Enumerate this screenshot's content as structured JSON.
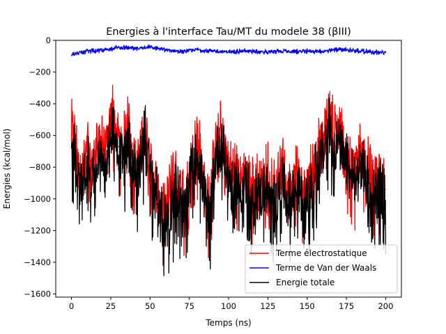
{
  "chart_data": {
    "type": "line",
    "title": "Energies à l'interface Tau/MT du modele 38 (βIII)",
    "xlabel": "Temps (ns)",
    "ylabel": "Energies (kcal/mol)",
    "xlim": [
      -10,
      210
    ],
    "ylim": [
      -1620,
      0
    ],
    "xticks": [
      0,
      25,
      50,
      75,
      100,
      125,
      150,
      175,
      200
    ],
    "yticks": [
      0,
      -200,
      -400,
      -600,
      -800,
      -1000,
      -1200,
      -1400,
      -1600
    ],
    "grid": false,
    "legend": "lower-right",
    "series": [
      {
        "name": "Terme électrostatique",
        "color": "#ff0000",
        "x": [
          0,
          2,
          4,
          6,
          8,
          10,
          12,
          14,
          16,
          18,
          20,
          22,
          24,
          26,
          28,
          30,
          32,
          34,
          36,
          38,
          40,
          42,
          44,
          46,
          48,
          50,
          52,
          54,
          56,
          58,
          60,
          62,
          64,
          66,
          68,
          70,
          72,
          74,
          76,
          78,
          80,
          82,
          84,
          86,
          88,
          90,
          92,
          94,
          96,
          98,
          100,
          102,
          104,
          106,
          108,
          110,
          112,
          114,
          116,
          118,
          120,
          122,
          124,
          126,
          128,
          130,
          132,
          134,
          136,
          138,
          140,
          142,
          144,
          146,
          148,
          150,
          152,
          154,
          156,
          158,
          160,
          162,
          164,
          166,
          168,
          170,
          172,
          174,
          176,
          178,
          180,
          182,
          184,
          186,
          188,
          190,
          192,
          194,
          196,
          198,
          200
        ],
        "y": [
          -560,
          -690,
          -800,
          -850,
          -760,
          -700,
          -800,
          -820,
          -720,
          -660,
          -650,
          -700,
          -580,
          -460,
          -560,
          -600,
          -700,
          -640,
          -560,
          -720,
          -760,
          -820,
          -700,
          -560,
          -620,
          -760,
          -900,
          -960,
          -1040,
          -1080,
          -1100,
          -1000,
          -920,
          -860,
          -900,
          -980,
          -1060,
          -960,
          -760,
          -700,
          -640,
          -720,
          -880,
          -1000,
          -1080,
          -780,
          -660,
          -600,
          -600,
          -720,
          -800,
          -860,
          -900,
          -860,
          -880,
          -820,
          -880,
          -1020,
          -960,
          -900,
          -920,
          -880,
          -840,
          -940,
          -1000,
          -1020,
          -880,
          -820,
          -900,
          -960,
          -980,
          -880,
          -860,
          -920,
          -960,
          -900,
          -900,
          -880,
          -760,
          -700,
          -680,
          -540,
          -460,
          -580,
          -600,
          -560,
          -640,
          -740,
          -740,
          -840,
          -840,
          -800,
          -720,
          -780,
          -820,
          -860,
          -900,
          -900,
          -880,
          -920,
          -940
        ],
        "ymin": [
          -1000,
          -1100,
          -1120,
          -1080,
          -1060,
          -1000,
          -1080,
          -1100,
          -980,
          -960,
          -940,
          -980,
          -920,
          -860,
          -900,
          -960,
          -1040,
          -1000,
          -940,
          -1060,
          -1120,
          -1160,
          -1060,
          -960,
          -1000,
          -1080,
          -1240,
          -1320,
          -1400,
          -1450,
          -1620,
          -1450,
          -1360,
          -1260,
          -1300,
          -1340,
          -1400,
          -1280,
          -1120,
          -1060,
          -1000,
          -1080,
          -1200,
          -1340,
          -1420,
          -1160,
          -1060,
          -980,
          -960,
          -1080,
          -1160,
          -1220,
          -1260,
          -1200,
          -1220,
          -1160,
          -1200,
          -1320,
          -1300,
          -1260,
          -1280,
          -1220,
          -1180,
          -1260,
          -1320,
          -1360,
          -1220,
          -1160,
          -1240,
          -1300,
          -1320,
          -1220,
          -1200,
          -1260,
          -1300,
          -1260,
          -1260,
          -1240,
          -1120,
          -1060,
          -1040,
          -920,
          -900,
          -960,
          -980,
          -960,
          -1020,
          -1120,
          -1120,
          -1200,
          -1220,
          -1180,
          -1100,
          -1160,
          -1180,
          -1220,
          -1260,
          -1260,
          -1240,
          -1260,
          -1300
        ],
        "ymax": [
          -250,
          -420,
          -560,
          -620,
          -540,
          -480,
          -560,
          -600,
          -520,
          -440,
          -430,
          -480,
          -360,
          -270,
          -330,
          -390,
          -480,
          -420,
          -340,
          -480,
          -540,
          -600,
          -480,
          -340,
          -250,
          -520,
          -640,
          -700,
          -760,
          -800,
          -820,
          -720,
          -660,
          -600,
          -640,
          -720,
          -800,
          -700,
          -520,
          -480,
          -400,
          -480,
          -620,
          -740,
          -820,
          -560,
          -420,
          -380,
          -380,
          -480,
          -560,
          -620,
          -640,
          -620,
          -640,
          -600,
          -640,
          -760,
          -700,
          -660,
          -680,
          -640,
          -600,
          -680,
          -740,
          -760,
          -620,
          -580,
          -640,
          -700,
          -720,
          -620,
          -620,
          -680,
          -720,
          -660,
          -660,
          -640,
          -520,
          -460,
          -420,
          -300,
          -270,
          -340,
          -380,
          -340,
          -400,
          -500,
          -500,
          -600,
          -600,
          -560,
          -480,
          -540,
          -580,
          -620,
          -660,
          -660,
          -640,
          -680,
          -700
        ]
      },
      {
        "name": "Terme de Van der Waals",
        "color": "#0000ff",
        "x": [
          0,
          10,
          20,
          30,
          40,
          50,
          60,
          70,
          80,
          90,
          100,
          110,
          120,
          130,
          140,
          150,
          160,
          170,
          180,
          190,
          200
        ],
        "y": [
          -92,
          -68,
          -62,
          -45,
          -52,
          -42,
          -60,
          -70,
          -58,
          -70,
          -72,
          -68,
          -75,
          -70,
          -72,
          -68,
          -70,
          -55,
          -65,
          -72,
          -78
        ],
        "ymin": [
          -105,
          -84,
          -78,
          -60,
          -68,
          -58,
          -76,
          -86,
          -74,
          -86,
          -88,
          -84,
          -92,
          -86,
          -88,
          -84,
          -86,
          -72,
          -82,
          -88,
          -95
        ],
        "ymax": [
          -78,
          -52,
          -46,
          -28,
          -36,
          -26,
          -44,
          -54,
          -42,
          -54,
          -56,
          -52,
          -58,
          -54,
          -56,
          -52,
          -54,
          -38,
          -48,
          -56,
          -62
        ]
      },
      {
        "name": "Energie totale",
        "color": "#000000",
        "x": [
          0,
          2,
          4,
          6,
          8,
          10,
          12,
          14,
          16,
          18,
          20,
          22,
          24,
          26,
          28,
          30,
          32,
          34,
          36,
          38,
          40,
          42,
          44,
          46,
          48,
          50,
          52,
          54,
          56,
          58,
          60,
          62,
          64,
          66,
          68,
          70,
          72,
          74,
          76,
          78,
          80,
          82,
          84,
          86,
          88,
          90,
          92,
          94,
          96,
          98,
          100,
          102,
          104,
          106,
          108,
          110,
          112,
          114,
          116,
          118,
          120,
          122,
          124,
          126,
          128,
          130,
          132,
          134,
          136,
          138,
          140,
          142,
          144,
          146,
          148,
          150,
          152,
          154,
          156,
          158,
          160,
          162,
          164,
          166,
          168,
          170,
          172,
          174,
          176,
          178,
          180,
          182,
          184,
          186,
          188,
          190,
          192,
          194,
          196,
          198,
          200
        ],
        "y": [
          -650,
          -760,
          -870,
          -920,
          -830,
          -770,
          -870,
          -890,
          -790,
          -730,
          -720,
          -770,
          -650,
          -530,
          -630,
          -670,
          -770,
          -710,
          -630,
          -790,
          -830,
          -890,
          -770,
          -630,
          -690,
          -830,
          -970,
          -1030,
          -1110,
          -1150,
          -1170,
          -1070,
          -990,
          -930,
          -970,
          -1050,
          -1130,
          -1030,
          -830,
          -770,
          -710,
          -790,
          -950,
          -1070,
          -1150,
          -850,
          -730,
          -670,
          -670,
          -790,
          -870,
          -930,
          -970,
          -930,
          -950,
          -890,
          -950,
          -1090,
          -1030,
          -970,
          -990,
          -950,
          -910,
          -1010,
          -1070,
          -1090,
          -950,
          -890,
          -970,
          -1030,
          -1050,
          -950,
          -930,
          -990,
          -1030,
          -970,
          -970,
          -950,
          -830,
          -770,
          -750,
          -610,
          -530,
          -650,
          -670,
          -630,
          -710,
          -810,
          -810,
          -910,
          -910,
          -870,
          -790,
          -850,
          -890,
          -930,
          -970,
          -970,
          -950,
          -990,
          -1010
        ],
        "ymin": [
          -1080,
          -1180,
          -1200,
          -1160,
          -1140,
          -1080,
          -1160,
          -1180,
          -1060,
          -1040,
          -1020,
          -1060,
          -1000,
          -940,
          -980,
          -1040,
          -1120,
          -1080,
          -1020,
          -1140,
          -1200,
          -1240,
          -1140,
          -1040,
          -1080,
          -1160,
          -1320,
          -1400,
          -1470,
          -1520,
          -1620,
          -1520,
          -1440,
          -1340,
          -1380,
          -1420,
          -1480,
          -1360,
          -1200,
          -1140,
          -1080,
          -1160,
          -1280,
          -1420,
          -1500,
          -1240,
          -1140,
          -1060,
          -1040,
          -1160,
          -1240,
          -1300,
          -1340,
          -1280,
          -1300,
          -1240,
          -1280,
          -1400,
          -1380,
          -1340,
          -1360,
          -1300,
          -1260,
          -1340,
          -1400,
          -1440,
          -1300,
          -1240,
          -1320,
          -1380,
          -1400,
          -1300,
          -1280,
          -1340,
          -1380,
          -1340,
          -1340,
          -1320,
          -1200,
          -1140,
          -1120,
          -1000,
          -980,
          -1040,
          -1060,
          -1040,
          -1100,
          -1200,
          -1200,
          -1280,
          -1300,
          -1260,
          -1180,
          -1240,
          -1260,
          -1300,
          -1340,
          -1340,
          -1320,
          -1340,
          -1380
        ],
        "ymax": [
          -340,
          -500,
          -640,
          -700,
          -620,
          -560,
          -640,
          -680,
          -600,
          -520,
          -510,
          -560,
          -440,
          -350,
          -410,
          -470,
          -560,
          -500,
          -420,
          -560,
          -620,
          -680,
          -560,
          -420,
          -330,
          -600,
          -720,
          -780,
          -840,
          -880,
          -900,
          -800,
          -740,
          -680,
          -720,
          -800,
          -880,
          -780,
          -600,
          -560,
          -480,
          -560,
          -700,
          -820,
          -900,
          -640,
          -500,
          -460,
          -460,
          -560,
          -640,
          -700,
          -720,
          -700,
          -720,
          -680,
          -720,
          -840,
          -780,
          -740,
          -760,
          -720,
          -680,
          -760,
          -820,
          -840,
          -700,
          -660,
          -720,
          -780,
          -800,
          -700,
          -700,
          -760,
          -800,
          -740,
          -740,
          -720,
          -600,
          -540,
          -500,
          -380,
          -350,
          -420,
          -460,
          -420,
          -480,
          -580,
          -580,
          -680,
          -680,
          -640,
          -560,
          -620,
          -660,
          -700,
          -740,
          -740,
          -720,
          -760,
          -780
        ]
      }
    ]
  }
}
